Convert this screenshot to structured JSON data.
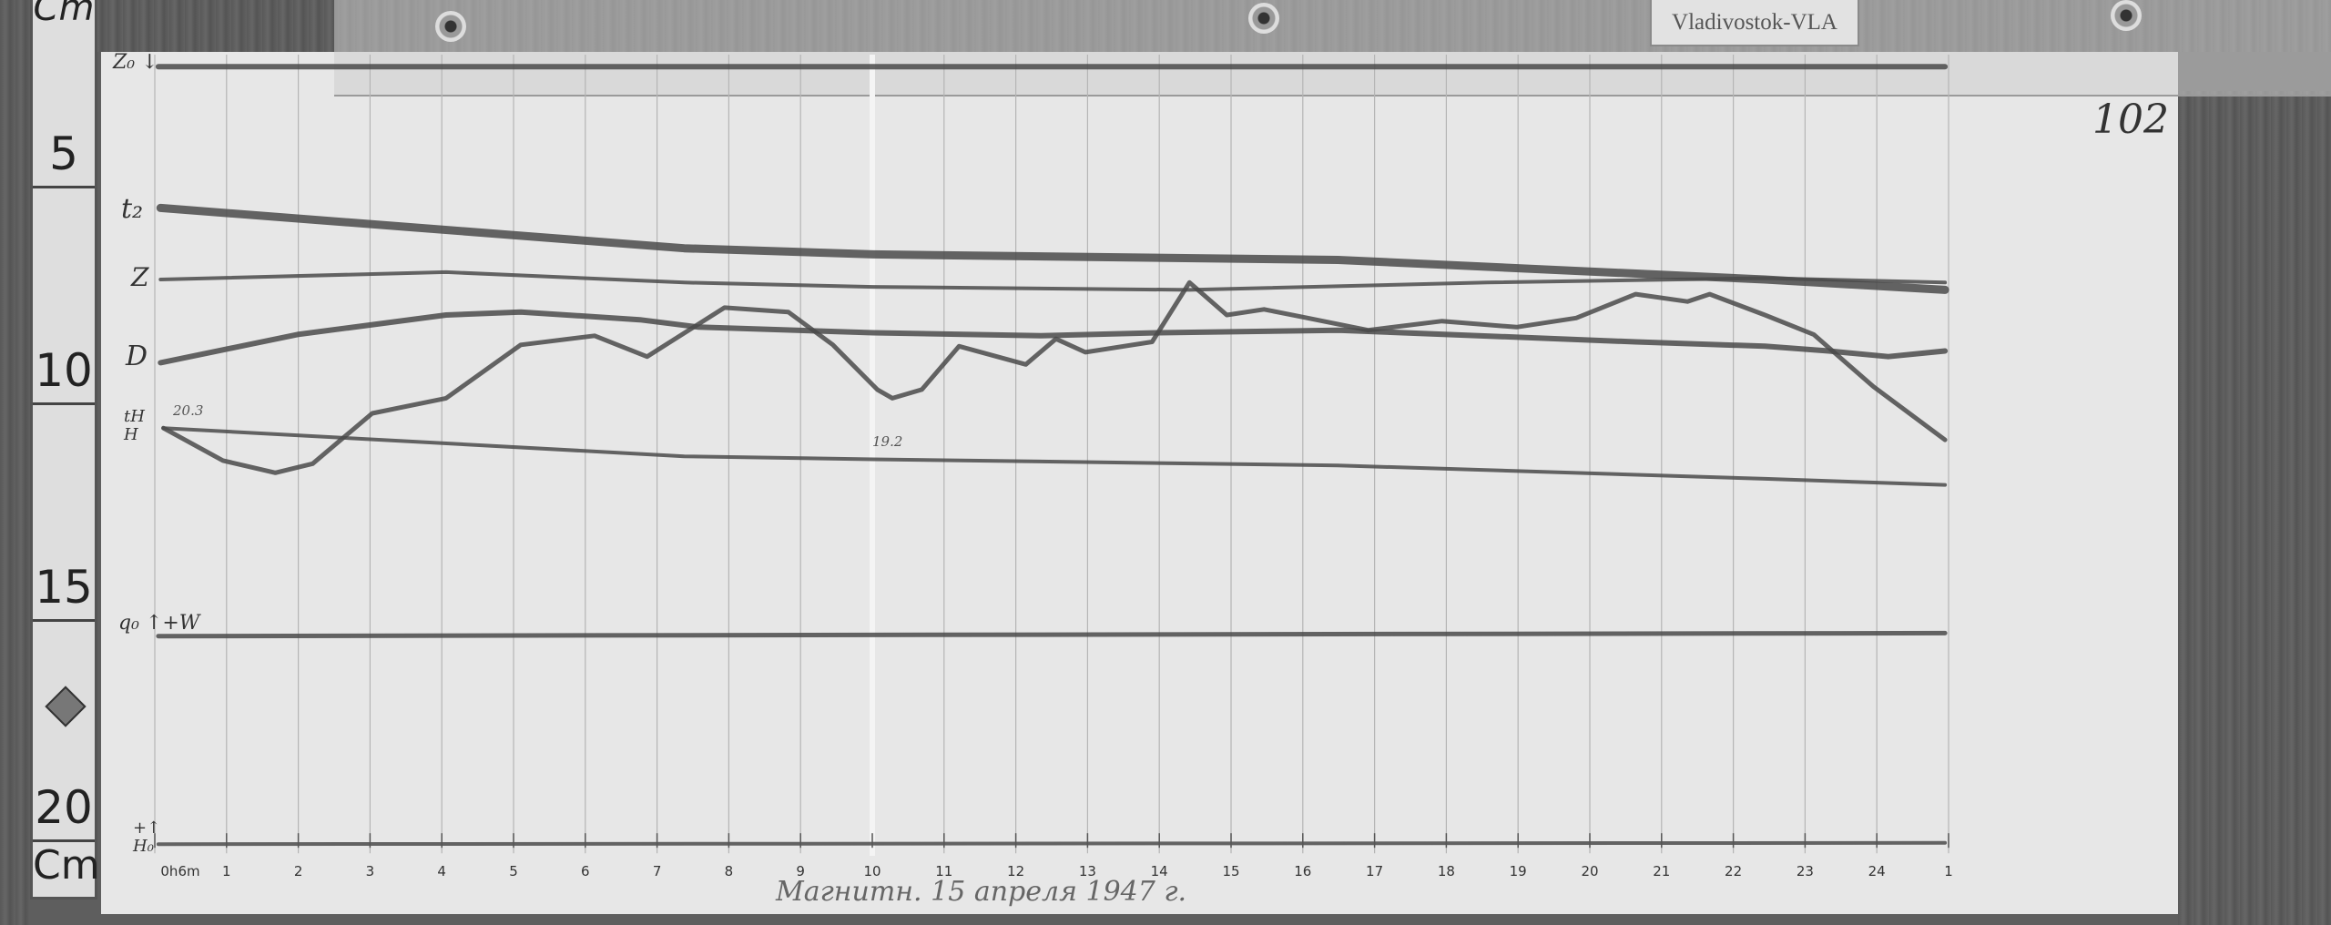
{
  "station_label": "Vladivostok-VLA",
  "sheet_number": "102",
  "caption": "Магнитн. 15 апреля 1947 г.",
  "ruler": {
    "unit_top": "Cm",
    "unit_bottom": "Cm",
    "marks": [
      "5",
      "10",
      "15",
      "20"
    ]
  },
  "curve_labels": {
    "z0": "Z₀ ↓",
    "t2": "t₂",
    "z": "Z",
    "d": "D",
    "th": "tH H",
    "q0": "q₀ ↑+W",
    "h0": "+↑ H₀"
  },
  "colors": {
    "trace": "#4a4a4a",
    "paper": "#e7e7e7",
    "grid": "#b5b5b5",
    "background": "#5e5e5e"
  },
  "chart_data": {
    "type": "line",
    "title": "",
    "xlabel": "",
    "ylabel": "Cm",
    "x_unit": "hours",
    "y_unit": "cm (ruler scale, increasing downward)",
    "xlim": [
      0,
      25
    ],
    "ylim": [
      0,
      20.5
    ],
    "grid": "vertical hourly lines",
    "x_tick_labels": [
      "0h6m",
      "1",
      "2",
      "3",
      "4",
      "5",
      "6",
      "7",
      "8",
      "9",
      "10",
      "11",
      "12",
      "13",
      "14",
      "15",
      "16",
      "17",
      "18",
      "19",
      "20",
      "21",
      "22",
      "23",
      "24",
      "1"
    ],
    "annotations": [
      {
        "text": "20.3",
        "x": 0.1,
        "y": 10.2
      },
      {
        "text": "19.2",
        "x": 10.1,
        "y": 10.84
      }
    ],
    "series": [
      {
        "name": "Z₀",
        "x": [
          0.05,
          24.95
        ],
        "y": [
          2.19,
          2.19
        ]
      },
      {
        "name": "t₂",
        "x": [
          0.08,
          7.38,
          10.01,
          16.49,
          22.44,
          24.95
        ],
        "y": [
          5.45,
          6.38,
          6.52,
          6.65,
          7.1,
          7.34
        ]
      },
      {
        "name": "Z",
        "x": [
          0.08,
          4.06,
          7.38,
          10.01,
          14.42,
          18.57,
          22.44,
          24.95
        ],
        "y": [
          7.1,
          6.93,
          7.17,
          7.27,
          7.34,
          7.17,
          7.07,
          7.17
        ]
      },
      {
        "name": "D",
        "x": [
          0.08,
          1.99,
          4.06,
          5.1,
          6.76,
          7.58,
          10.01,
          12.35,
          14.0,
          16.5,
          20.64,
          22.44,
          23.33,
          24.16,
          24.95
        ],
        "y": [
          9.02,
          8.37,
          7.92,
          7.85,
          8.03,
          8.2,
          8.33,
          8.4,
          8.33,
          8.27,
          8.54,
          8.64,
          8.75,
          8.88,
          8.75
        ]
      },
      {
        "name": "tH",
        "x": [
          0.12,
          7.38,
          10.01,
          16.49,
          22.44,
          24.95
        ],
        "y": [
          10.53,
          11.18,
          11.25,
          11.39,
          11.7,
          11.84
        ]
      },
      {
        "name": "H",
        "x": [
          0.12,
          0.95,
          1.68,
          2.2,
          3.03,
          4.06,
          5.1,
          6.13,
          6.86,
          7.94,
          8.83,
          9.45,
          10.07,
          10.28,
          10.69,
          11.21,
          12.14,
          12.56,
          12.97,
          13.9,
          14.42,
          14.94,
          15.46,
          15.98,
          16.91,
          17.94,
          18.98,
          19.81,
          20.64,
          21.36,
          21.67,
          22.44,
          23.12,
          23.95,
          24.95
        ],
        "y": [
          10.53,
          11.28,
          11.56,
          11.35,
          10.19,
          9.84,
          8.61,
          8.4,
          8.88,
          7.75,
          7.85,
          8.61,
          9.64,
          9.84,
          9.64,
          8.64,
          9.06,
          8.47,
          8.78,
          8.54,
          7.17,
          7.92,
          7.79,
          7.96,
          8.27,
          8.06,
          8.2,
          7.99,
          7.44,
          7.61,
          7.44,
          7.92,
          8.37,
          9.57,
          10.8
        ]
      },
      {
        "name": "q₀",
        "x": [
          0.05,
          24.95
        ],
        "y": [
          15.33,
          15.26
        ]
      },
      {
        "name": "H₀",
        "x": [
          0.05,
          24.95
        ],
        "y": [
          20.13,
          20.1
        ]
      }
    ]
  }
}
